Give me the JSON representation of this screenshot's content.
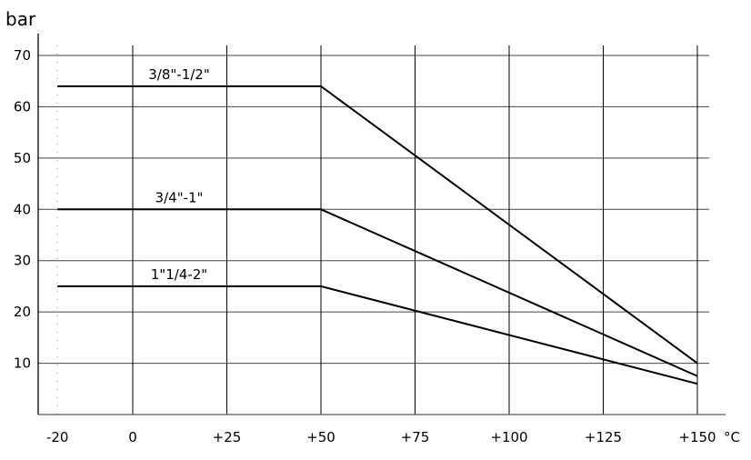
{
  "chart_data": {
    "type": "line",
    "ylabel": "bar",
    "xlabel": "°C",
    "xlim": [
      -20,
      150
    ],
    "ylim": [
      0,
      70
    ],
    "x_ticks": [
      "-20",
      "0",
      "+25",
      "+50",
      "+75",
      "+100",
      "+125",
      "+150"
    ],
    "x_tick_values": [
      -20,
      0,
      25,
      50,
      75,
      100,
      125,
      150
    ],
    "y_ticks": [
      "10",
      "20",
      "30",
      "40",
      "50",
      "60",
      "70"
    ],
    "y_tick_values": [
      10,
      20,
      30,
      40,
      50,
      60,
      70
    ],
    "grid": true,
    "series": [
      {
        "name": "3/8\"-1/2\"",
        "x": [
          -20,
          50,
          150
        ],
        "y": [
          64,
          64,
          10
        ]
      },
      {
        "name": "3/4\"-1\"",
        "x": [
          -20,
          50,
          150
        ],
        "y": [
          40,
          40,
          7.5
        ]
      },
      {
        "name": "1\"1/4-2\"",
        "x": [
          -20,
          50,
          150
        ],
        "y": [
          25,
          25,
          6
        ]
      }
    ],
    "colors": {
      "line": "#000000",
      "grid": "#444444"
    }
  }
}
